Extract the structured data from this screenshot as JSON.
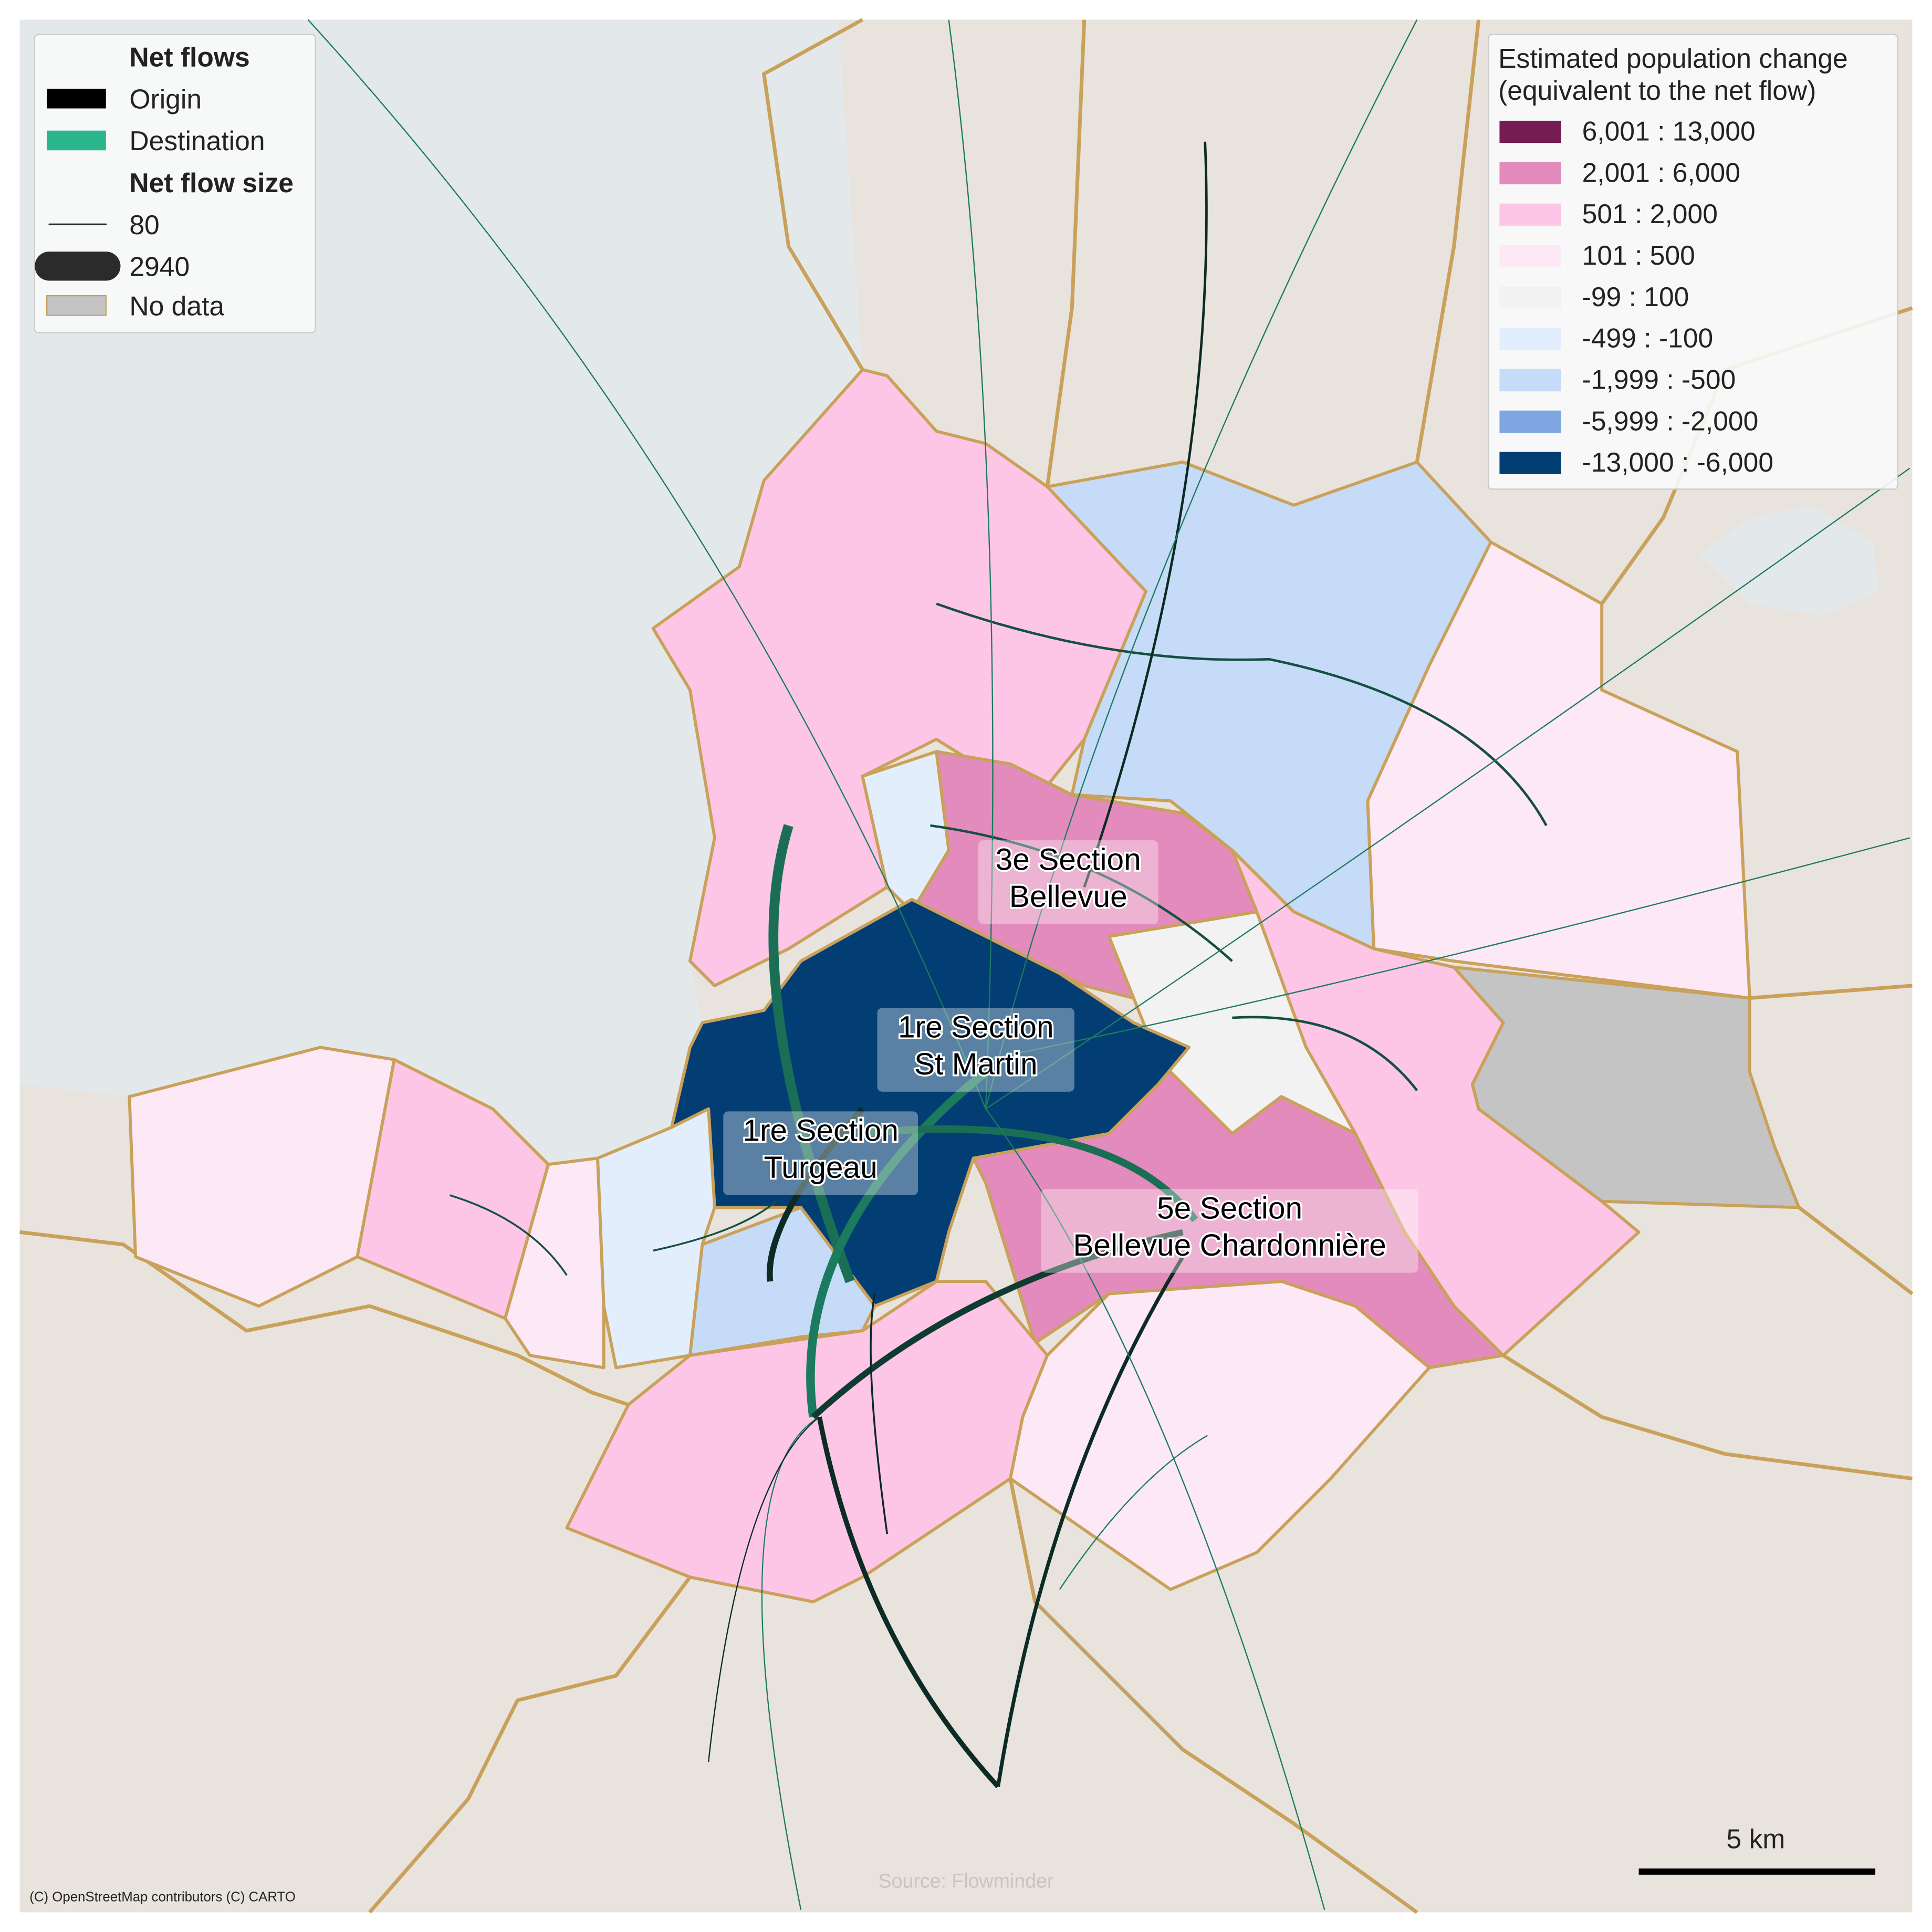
{
  "legend_flows": {
    "title": "Net flows",
    "origin": {
      "label": "Origin",
      "color": "#000000"
    },
    "destination": {
      "label": "Destination",
      "color": "#2bb58c"
    },
    "size_title": "Net flow size",
    "sizes": [
      80,
      2940
    ],
    "no_data": {
      "label": "No data",
      "color": "#c4c4c4"
    }
  },
  "legend_change": {
    "title_lines": [
      "Estimated population change",
      "(equivalent to the net flow)"
    ],
    "classes": [
      {
        "label": "6,001 : 13,000",
        "color": "#751c52"
      },
      {
        "label": "2,001 : 6,000",
        "color": "#e38bbc"
      },
      {
        "label": "501 : 2,000",
        "color": "#fdc6e6"
      },
      {
        "label": "101 : 500",
        "color": "#fde8f6"
      },
      {
        "label": "-99 : 100",
        "color": "#f2f2f2"
      },
      {
        "label": "-499 : -100",
        "color": "#e3eefc"
      },
      {
        "label": "-1,999 : -500",
        "color": "#c6dbf8"
      },
      {
        "label": "-5,999 : -2,000",
        "color": "#7fa5e3"
      },
      {
        "label": "-13,000 : -6,000",
        "color": "#023e73"
      }
    ]
  },
  "labels": [
    [
      "3e Section",
      "Bellevue"
    ],
    [
      "1re Section",
      "St Martin"
    ],
    [
      "1re Section",
      "Turgeau"
    ],
    [
      "5e Section",
      "Bellevue Chardonnière"
    ]
  ],
  "scale_bar": "5 km",
  "attribution": "(C) OpenStreetMap contributors (C) CARTO",
  "source": "Source: Flowminder"
}
